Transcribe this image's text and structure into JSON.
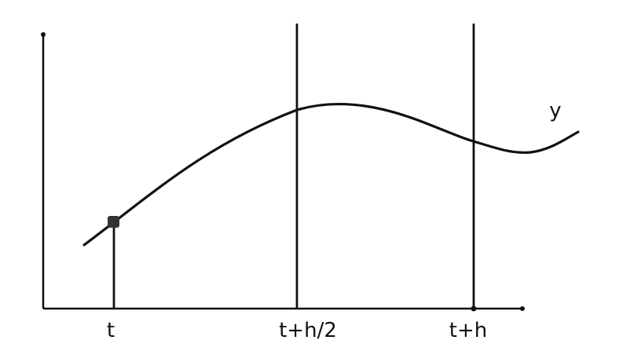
{
  "diagram": {
    "curve_label": "y",
    "tick_labels": {
      "t": "t",
      "t_half": "t+h/2",
      "t_full": "t+h"
    },
    "colors": {
      "ink": "#111111",
      "background": "#ffffff"
    }
  }
}
